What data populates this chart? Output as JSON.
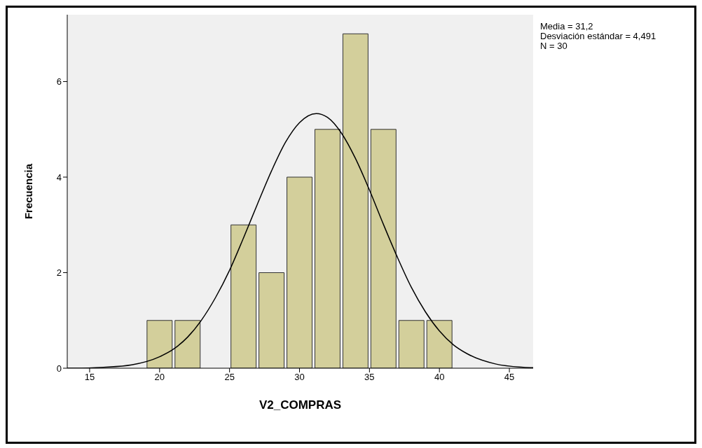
{
  "chart_data": {
    "type": "histogram",
    "xlabel": "V2_COMPRAS",
    "ylabel": "Frecuencia",
    "bins": [
      19,
      21,
      23,
      25,
      27,
      29,
      31,
      33,
      35,
      37,
      39,
      41
    ],
    "values": [
      1,
      1,
      0,
      3,
      2,
      4,
      5,
      7,
      5,
      1,
      1
    ],
    "color": "#d3cf9b",
    "series": [
      {
        "type": "line",
        "color": "#000000",
        "x": [
          13.4,
          14,
          16,
          18,
          20,
          21,
          22,
          23,
          24,
          25,
          26,
          27,
          28,
          29,
          30,
          31.2,
          32,
          33,
          34,
          35,
          36,
          37,
          38,
          39,
          40,
          41,
          42,
          44,
          46,
          46.7
        ],
        "values": [
          0.0,
          0.0,
          0.02,
          0.07,
          0.24,
          0.4,
          0.65,
          1.01,
          1.48,
          2.05,
          2.73,
          3.44,
          4.13,
          4.73,
          5.14,
          5.33,
          5.25,
          4.92,
          4.39,
          3.73,
          3.01,
          2.32,
          1.69,
          1.18,
          0.78,
          0.49,
          0.3,
          0.09,
          0.02,
          0.01
        ]
      }
    ],
    "xlim": [
      13.4,
      46.7
    ],
    "xticks": [
      15,
      20,
      25,
      30,
      35,
      40,
      45
    ],
    "ylim": [
      0,
      7.4
    ],
    "yticks": [
      0,
      2,
      4,
      6
    ],
    "grid": false,
    "annotations": [
      "Media = 31,2",
      "Desviación estándar = 4,491",
      "N = 30"
    ]
  }
}
